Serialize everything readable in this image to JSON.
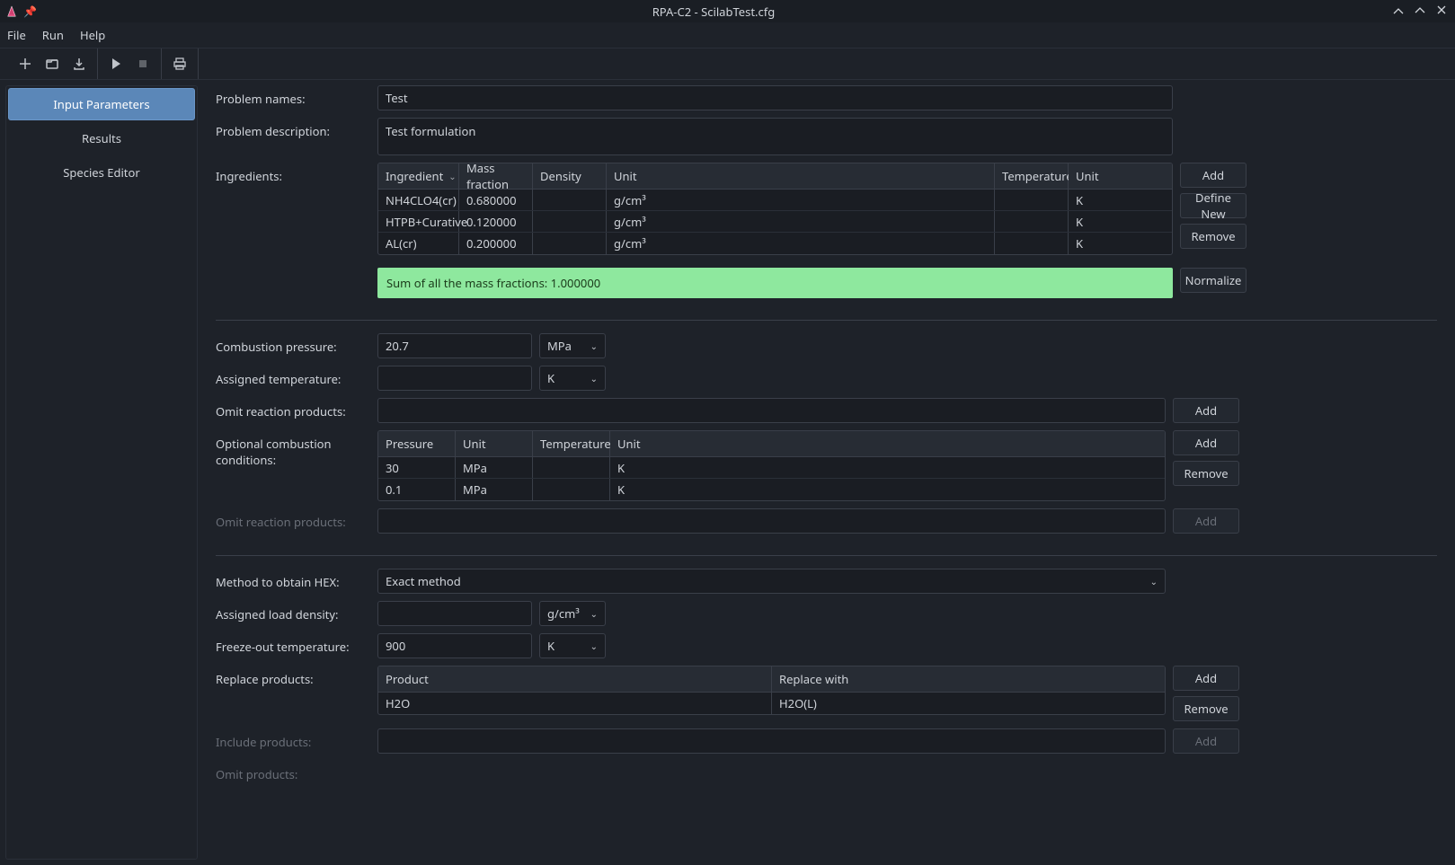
{
  "window": {
    "title": "RPA-C2 - ScilabTest.cfg"
  },
  "menu": {
    "file": "File",
    "run": "Run",
    "help": "Help"
  },
  "sidebar": {
    "items": [
      {
        "label": "Input Parameters",
        "active": true
      },
      {
        "label": "Results",
        "active": false
      },
      {
        "label": "Species Editor",
        "active": false
      }
    ]
  },
  "labels": {
    "problem_names": "Problem names:",
    "problem_description": "Problem description:",
    "ingredients": "Ingredients:",
    "combustion_pressure": "Combustion pressure:",
    "assigned_temperature": "Assigned temperature:",
    "omit_reaction_products": "Omit reaction products:",
    "optional_combustion_conditions": "Optional combustion conditions:",
    "method_hex": "Method to obtain HEX:",
    "assigned_load_density": "Assigned load density:",
    "freeze_out_temperature": "Freeze-out temperature:",
    "replace_products": "Replace products:",
    "include_products": "Include products:",
    "omit_products": "Omit products:"
  },
  "buttons": {
    "add": "Add",
    "define_new": "Define New",
    "remove": "Remove",
    "normalize": "Normalize"
  },
  "problem": {
    "name": "Test",
    "description": "Test formulation"
  },
  "ingredients_table": {
    "columns": {
      "ingredient": "Ingredient",
      "mass_fraction": "Mass fraction",
      "density": "Density",
      "unit": "Unit",
      "temperature": "Temperature",
      "unit2": "Unit"
    },
    "col_widths": [
      "90px",
      "82px",
      "82px",
      "432px",
      "82px",
      "1"
    ],
    "rows": [
      {
        "ingredient": "NH4CLO4(cr)",
        "mass_fraction": "0.680000",
        "density": "",
        "unit": "g/cm³",
        "temperature": "",
        "unit2": "K"
      },
      {
        "ingredient": "HTPB+Curative",
        "mass_fraction": "0.120000",
        "density": "",
        "unit": "g/cm³",
        "temperature": "",
        "unit2": "K"
      },
      {
        "ingredient": "AL(cr)",
        "mass_fraction": "0.200000",
        "density": "",
        "unit": "g/cm³",
        "temperature": "",
        "unit2": "K"
      }
    ],
    "sum_text": "Sum of all the mass fractions: 1.000000"
  },
  "combustion": {
    "pressure_value": "20.7",
    "pressure_unit": "MPa",
    "assigned_temp_value": "",
    "assigned_temp_unit": "K",
    "omit_products": ""
  },
  "conditions_table": {
    "columns": {
      "pressure": "Pressure",
      "unit": "Unit",
      "temperature": "Temperature",
      "unit2": "Unit"
    },
    "col_widths": [
      "86px",
      "86px",
      "86px",
      "1"
    ],
    "rows": [
      {
        "pressure": "30",
        "unit": "MPa",
        "temperature": "",
        "unit2": "K"
      },
      {
        "pressure": "0.1",
        "unit": "MPa",
        "temperature": "",
        "unit2": "K"
      }
    ]
  },
  "hex": {
    "method": "Exact method",
    "load_density_value": "",
    "load_density_unit": "g/cm³",
    "freeze_out_value": "900",
    "freeze_out_unit": "K"
  },
  "replace_table": {
    "columns": {
      "product": "Product",
      "replace_with": "Replace with"
    },
    "rows": [
      {
        "product": "H2O",
        "replace_with": "H2O(L)"
      }
    ]
  },
  "colors": {
    "background": "#1e2229",
    "panel_border": "#3a3f49",
    "input_bg": "#1a1d23",
    "active_tab_bg": "#5b87b8",
    "sum_bar_bg": "#8ee89e",
    "sum_bar_fg": "#1a3a1a",
    "scroll_thumb": "#4a87c8"
  }
}
